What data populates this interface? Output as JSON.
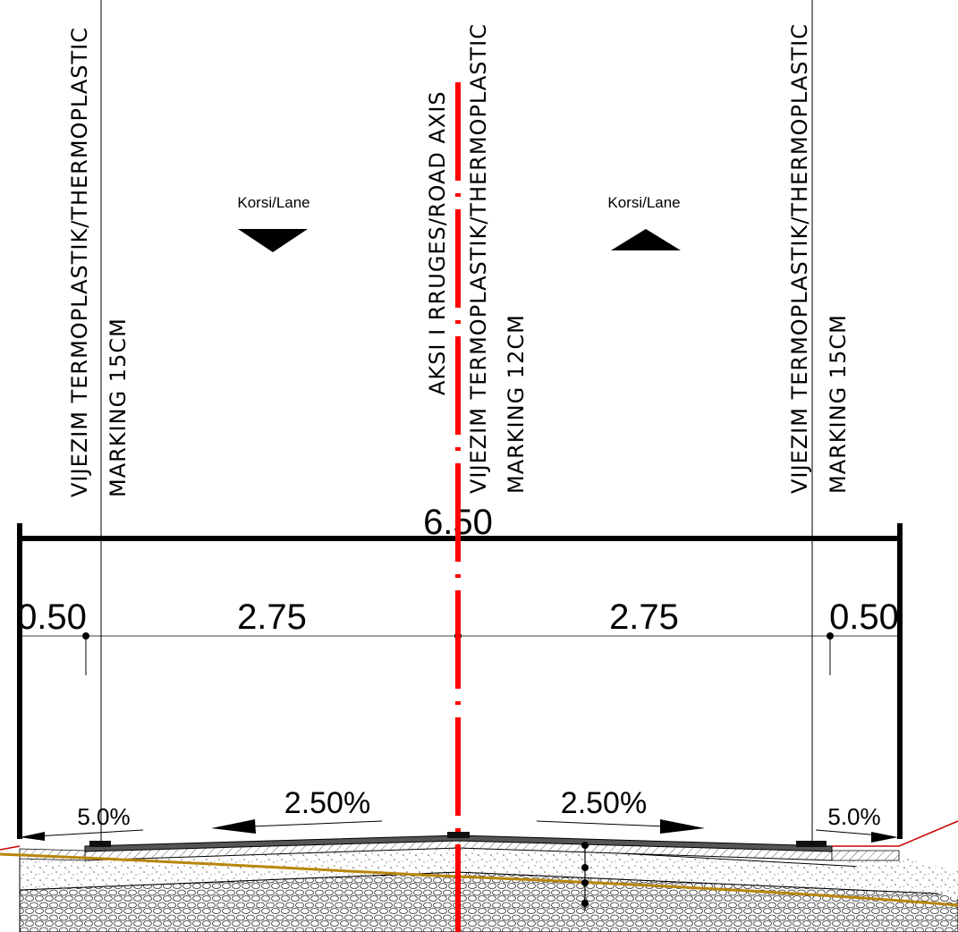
{
  "labels": {
    "marking_left_line1": "VIJEZIM TERMOPLASTIK/THERMOPLASTIC",
    "marking_left_line2": "MARKING 15CM",
    "axis_line1": "AKSI I RRUGES/ROAD AXIS",
    "axis_line2": "VIJEZIM TERMOPLASTIK/THERMOPLASTIC",
    "axis_line3": "MARKING 12CM",
    "marking_right_line1": "VIJEZIM TERMOPLASTIK/THERMOPLASTIC",
    "marking_right_line2": "MARKING 15CM",
    "lane_left": "Korsi/Lane",
    "lane_right": "Korsi/Lane"
  },
  "dimensions": {
    "total": "6.50",
    "shoulder_left": "0.50",
    "lane_left": "2.75",
    "lane_right": "2.75",
    "shoulder_right": "0.50"
  },
  "slopes": {
    "shoulder_left": "5.0%",
    "lane_left": "2.50%",
    "lane_right": "2.50%",
    "shoulder_right": "5.0%"
  },
  "colors": {
    "axis": "#ff0000",
    "subgrade_line": "#b8860b",
    "asphalt": "#555555",
    "edge": "#cc0000"
  }
}
